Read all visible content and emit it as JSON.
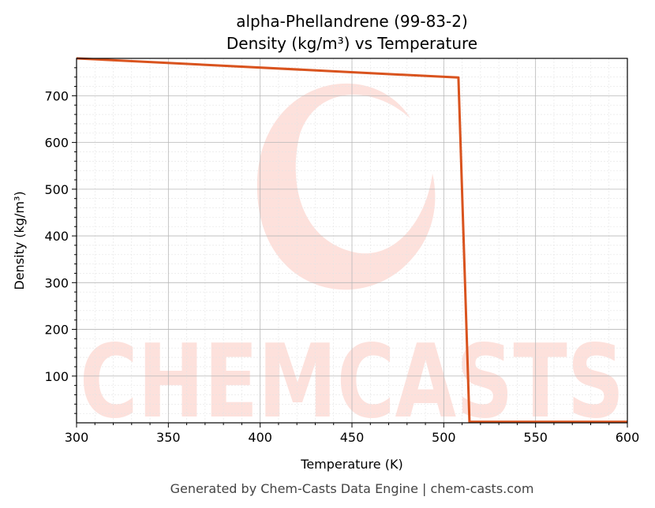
{
  "chart_data": {
    "type": "line",
    "title": "alpha-Phellandrene (99-83-2)",
    "subtitle": "Density (kg/m³) vs Temperature",
    "xlabel": "Temperature (K)",
    "ylabel": "Density (kg/m³)",
    "xlim": [
      300,
      600
    ],
    "ylim": [
      0,
      780
    ],
    "x_ticks": [
      300,
      350,
      400,
      450,
      500,
      550,
      600
    ],
    "y_ticks": [
      100,
      200,
      300,
      400,
      500,
      600,
      700
    ],
    "grid": true,
    "series": [
      {
        "color": "#d9531e",
        "points": [
          [
            300,
            780
          ],
          [
            508,
            739
          ],
          [
            514,
            2
          ],
          [
            600,
            2
          ]
        ]
      }
    ]
  },
  "watermark": {
    "text": "CHEMCASTS",
    "color": "#fde1dc"
  },
  "footer": "Generated by Chem-Casts Data Engine | chem-casts.com"
}
